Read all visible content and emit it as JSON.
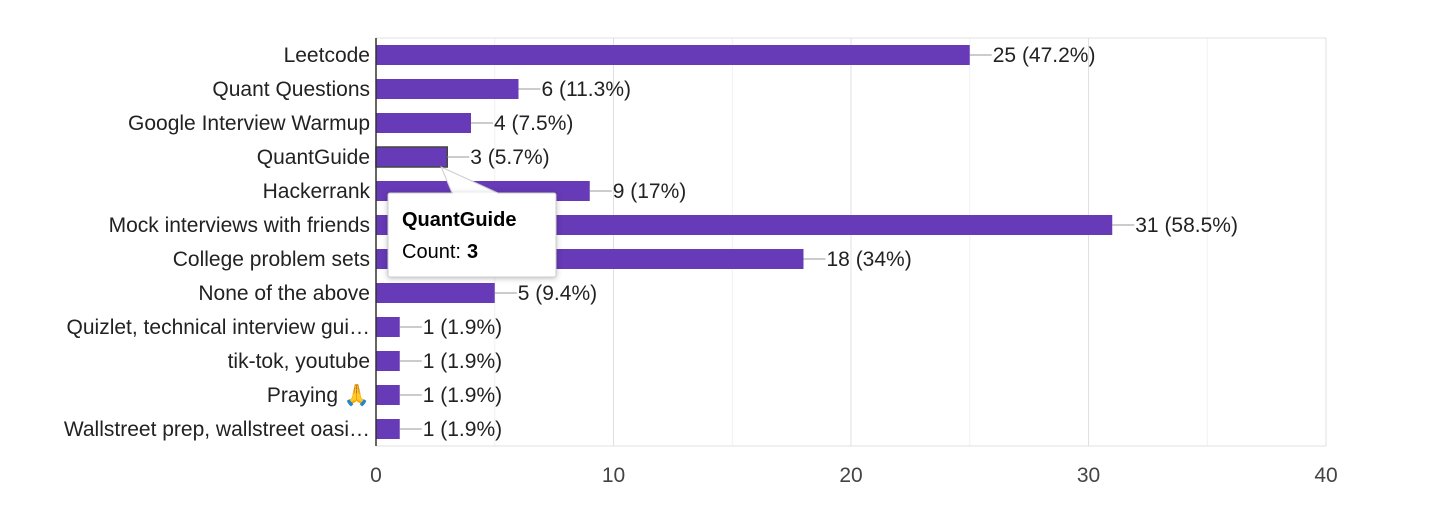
{
  "chart_data": {
    "type": "bar",
    "orientation": "horizontal",
    "categories": [
      "Leetcode",
      "Quant Questions",
      "Google Interview Warmup",
      "QuantGuide",
      "Hackerrank",
      "Mock interviews with friends",
      "College problem sets",
      "None of the above",
      "Quizlet, technical interview gui…",
      "tik-tok, youtube",
      "Praying 🙏",
      "Wallstreet prep, wallstreet oasi…"
    ],
    "values": [
      25,
      6,
      4,
      3,
      9,
      31,
      18,
      5,
      1,
      1,
      1,
      1
    ],
    "data_labels": [
      "25 (47.2%)",
      "6 (11.3%)",
      "4 (7.5%)",
      "3 (5.7%)",
      "9 (17%)",
      "31 (58.5%)",
      "18 (34%)",
      "5 (9.4%)",
      "1 (1.9%)",
      "1 (1.9%)",
      "1 (1.9%)",
      "1 (1.9%)"
    ],
    "xlim": [
      0,
      40
    ],
    "xticks": [
      0,
      10,
      20,
      30,
      40
    ],
    "grid": true,
    "bar_color": "#673ab7",
    "highlighted_index": 3,
    "tooltip": {
      "title": "QuantGuide",
      "label": "Count:",
      "value": "3"
    }
  }
}
